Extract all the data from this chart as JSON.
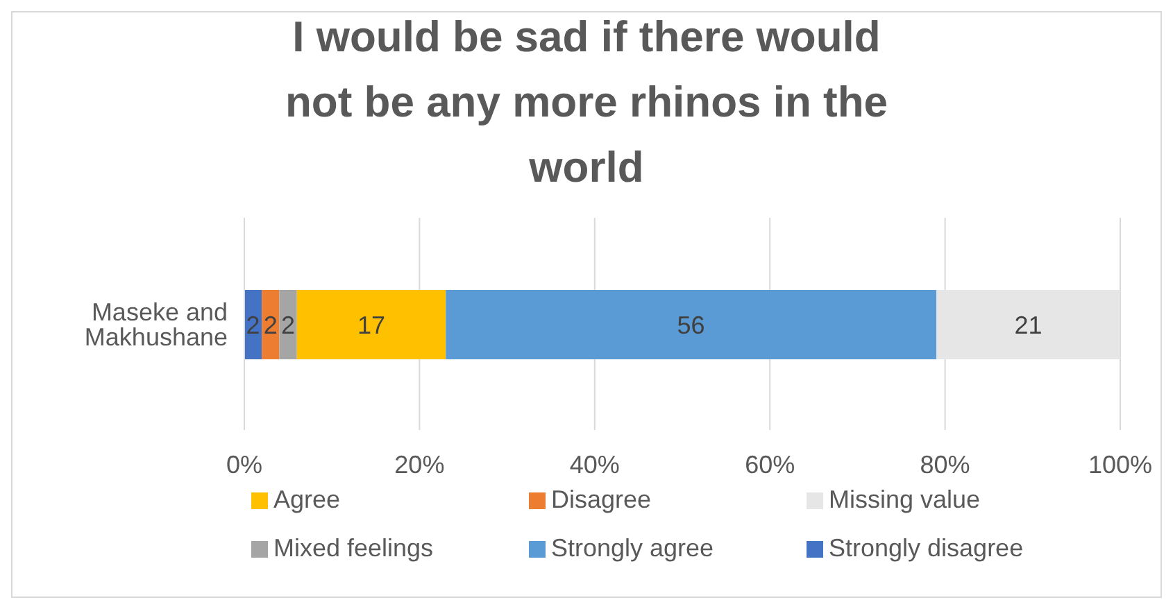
{
  "chart_data": {
    "type": "bar",
    "title": "I would be sad if there would not be any more rhinos in the world",
    "orientation": "horizontal",
    "stacked": true,
    "categories": [
      "Maseke and Makhushane"
    ],
    "series": [
      {
        "name": "Strongly disagree",
        "color": "#4472c4",
        "values": [
          2
        ]
      },
      {
        "name": "Disagree",
        "color": "#ed7d31",
        "values": [
          2
        ]
      },
      {
        "name": "Mixed feelings",
        "color": "#a5a5a5",
        "values": [
          2
        ]
      },
      {
        "name": "Agree",
        "color": "#ffc000",
        "values": [
          17
        ]
      },
      {
        "name": "Strongly agree",
        "color": "#5b9bd5",
        "values": [
          56
        ]
      },
      {
        "name": "Missing value",
        "color": "#e7e6e6",
        "values": [
          21
        ]
      }
    ],
    "xlim": [
      0,
      100
    ],
    "xticks": [
      {
        "value": 0,
        "label": "0%"
      },
      {
        "value": 20,
        "label": "20%"
      },
      {
        "value": 40,
        "label": "40%"
      },
      {
        "value": 60,
        "label": "60%"
      },
      {
        "value": 80,
        "label": "80%"
      },
      {
        "value": 100,
        "label": "100%"
      }
    ],
    "grid": "x",
    "legend": "bottom",
    "data_labels": true
  }
}
